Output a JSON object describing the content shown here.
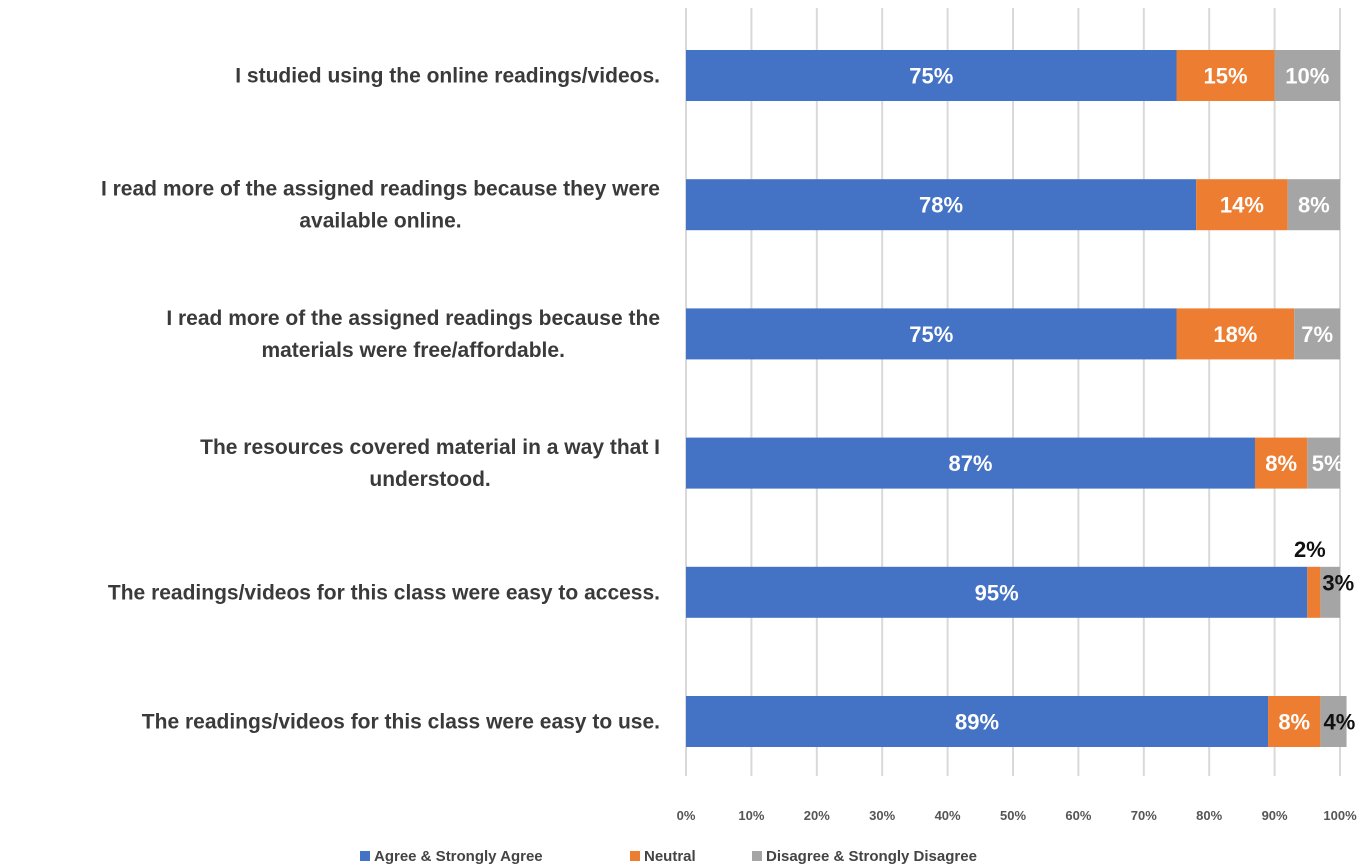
{
  "chart_data": {
    "type": "bar",
    "orientation": "horizontal",
    "stacked": true,
    "categories": [
      "I studied using the online readings/videos.",
      "I read more of the assigned readings because they were available online.",
      "I read more of the assigned readings because the materials were free/affordable.",
      "The resources covered material in a way that I understood.",
      "The readings/videos for this class were easy to access.",
      "The readings/videos for this class were easy to use."
    ],
    "category_lines": [
      [
        "I studied using the online readings/videos."
      ],
      [
        "I read more of the assigned readings because they were",
        "available online."
      ],
      [
        "I read more of the assigned readings because the",
        "materials were free/affordable."
      ],
      [
        "The resources covered material in a way that I",
        "understood."
      ],
      [
        "The readings/videos for this class were easy to access."
      ],
      [
        "The readings/videos for this class were easy to use."
      ]
    ],
    "series": [
      {
        "name": "Agree & Strongly Agree",
        "color": "#4472C4",
        "values": [
          75,
          78,
          75,
          87,
          95,
          89
        ],
        "labels": [
          "75%",
          "78%",
          "75%",
          "87%",
          "95%",
          "89%"
        ]
      },
      {
        "name": "Neutral",
        "color": "#ED7D31",
        "values": [
          15,
          14,
          18,
          8,
          2,
          8
        ],
        "labels": [
          "15%",
          "14%",
          "18%",
          "8%",
          "2%",
          "8%"
        ]
      },
      {
        "name": "Disagree & Strongly Disagree",
        "color": "#A5A5A5",
        "values": [
          10,
          8,
          7,
          5,
          3,
          4
        ],
        "labels": [
          "10%",
          "8%",
          "7%",
          "5%",
          "3%",
          "4%"
        ]
      }
    ],
    "xlim": [
      0,
      100
    ],
    "x_ticks": [
      "0%",
      "10%",
      "20%",
      "30%",
      "40%",
      "50%",
      "60%",
      "70%",
      "80%",
      "90%",
      "100%"
    ],
    "grid": true,
    "legend_position": "bottom",
    "title": "",
    "xlabel": "",
    "ylabel": ""
  }
}
